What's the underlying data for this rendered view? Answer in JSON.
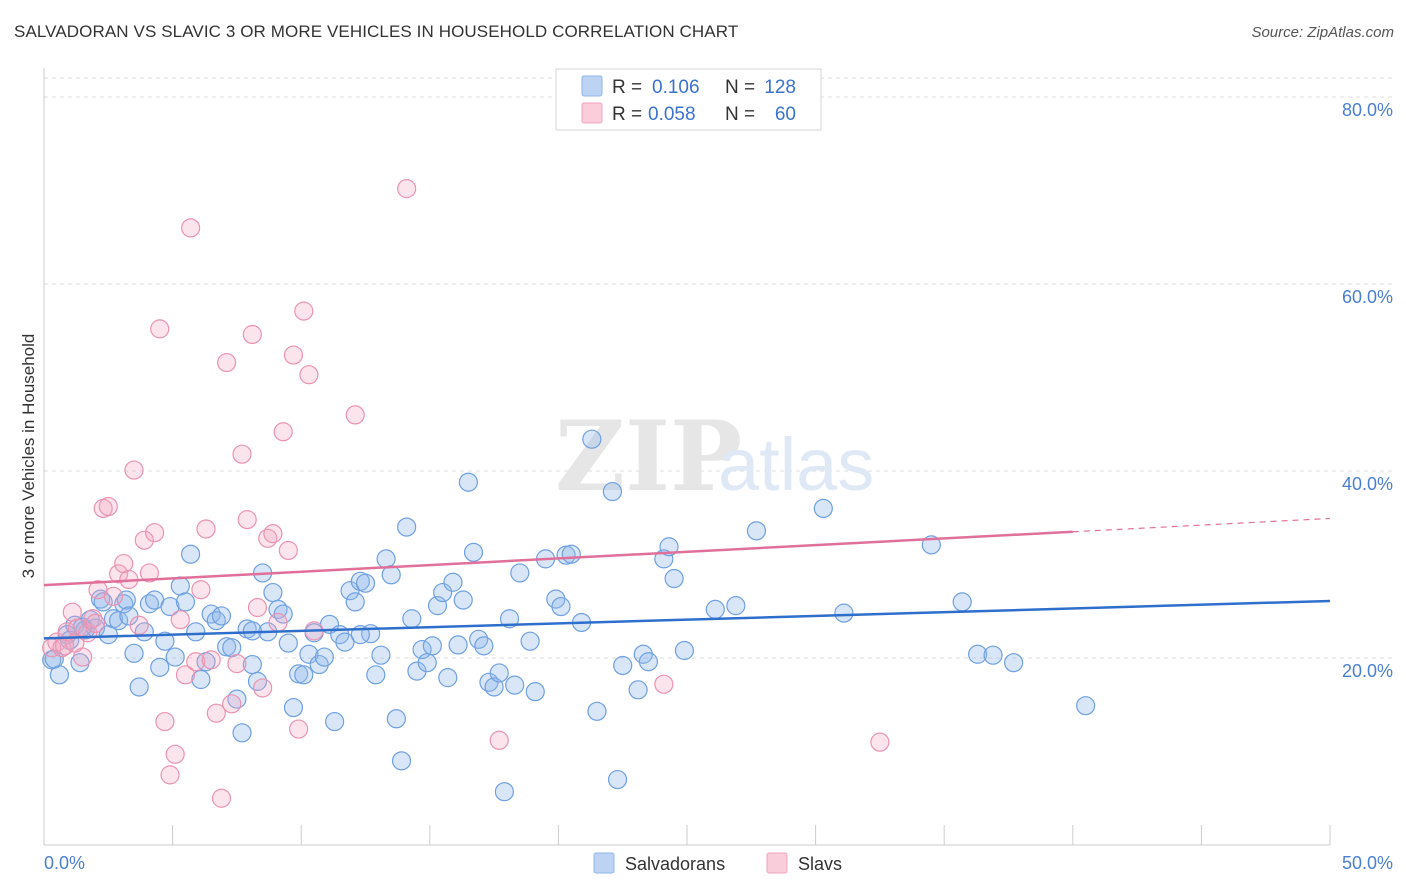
{
  "header": {
    "title": "SALVADORAN VS SLAVIC 3 OR MORE VEHICLES IN HOUSEHOLD CORRELATION CHART",
    "source": "Source: ZipAtlas.com"
  },
  "watermark": {
    "zip": "ZIP",
    "atlas": "atlas"
  },
  "legend_top": [
    {
      "r_label": "R =",
      "r_value": "0.106",
      "n_label": "N =",
      "n_value": "128",
      "color": "#8fb6ea"
    },
    {
      "r_label": "R =",
      "r_value": "0.058",
      "n_label": "N =",
      "n_value": "60",
      "color": "#f2a5bf"
    }
  ],
  "chart_data": {
    "type": "scatter",
    "ylabel": "3 or more Vehicles in Household",
    "xlim": [
      0,
      50
    ],
    "ylim": [
      0,
      80
    ],
    "x_tick_labels": [
      "0.0%",
      "50.0%"
    ],
    "y_ticks": [
      20,
      40,
      60,
      80
    ],
    "y_tick_labels": [
      "20.0%",
      "40.0%",
      "60.0%",
      "80.0%"
    ],
    "grid": true,
    "legend_position": "bottom-center",
    "colors": {
      "Salvadorans": "#8fb6ea",
      "Slavs": "#f2a5bf",
      "Salvadorans_line": "#2f6fcc",
      "Slavs_line": "#e0709a",
      "tick_label": "#4a7fd0"
    },
    "series": [
      {
        "name": "Salvadorans",
        "trend": {
          "x": [
            0,
            50
          ],
          "y": [
            22.1,
            26.1
          ]
        },
        "points": [
          [
            0.3,
            19.8
          ],
          [
            0.6,
            18.2
          ],
          [
            0.9,
            22.5
          ],
          [
            1.2,
            23.5
          ],
          [
            1.4,
            19.5
          ],
          [
            1.6,
            23.0
          ],
          [
            1.8,
            24.1
          ],
          [
            2.0,
            23.2
          ],
          [
            2.2,
            26.3
          ],
          [
            2.5,
            22.5
          ],
          [
            2.7,
            24.2
          ],
          [
            2.9,
            24.0
          ],
          [
            3.1,
            25.8
          ],
          [
            3.2,
            26.2
          ],
          [
            3.5,
            20.5
          ],
          [
            3.7,
            16.9
          ],
          [
            3.9,
            22.8
          ],
          [
            4.1,
            25.8
          ],
          [
            4.3,
            26.2
          ],
          [
            4.5,
            19.0
          ],
          [
            4.7,
            21.8
          ],
          [
            4.9,
            25.5
          ],
          [
            5.1,
            20.1
          ],
          [
            5.3,
            27.7
          ],
          [
            5.5,
            26.0
          ],
          [
            5.7,
            31.1
          ],
          [
            5.9,
            22.8
          ],
          [
            6.1,
            17.7
          ],
          [
            6.3,
            19.6
          ],
          [
            6.5,
            24.7
          ],
          [
            6.7,
            24.0
          ],
          [
            6.9,
            24.5
          ],
          [
            7.1,
            21.2
          ],
          [
            7.3,
            21.1
          ],
          [
            7.5,
            15.6
          ],
          [
            7.7,
            12.0
          ],
          [
            7.9,
            23.1
          ],
          [
            8.1,
            19.3
          ],
          [
            8.3,
            17.5
          ],
          [
            8.5,
            29.1
          ],
          [
            8.7,
            22.8
          ],
          [
            8.9,
            27.0
          ],
          [
            9.1,
            25.2
          ],
          [
            9.3,
            24.7
          ],
          [
            9.5,
            21.6
          ],
          [
            9.7,
            14.7
          ],
          [
            9.9,
            18.3
          ],
          [
            10.1,
            18.2
          ],
          [
            10.3,
            20.4
          ],
          [
            10.5,
            22.7
          ],
          [
            10.7,
            19.3
          ],
          [
            10.9,
            20.1
          ],
          [
            11.1,
            23.6
          ],
          [
            11.3,
            13.2
          ],
          [
            11.5,
            22.5
          ],
          [
            11.7,
            21.7
          ],
          [
            11.9,
            27.2
          ],
          [
            12.1,
            26.0
          ],
          [
            12.3,
            28.2
          ],
          [
            12.5,
            28.0
          ],
          [
            12.7,
            22.6
          ],
          [
            12.9,
            18.2
          ],
          [
            13.1,
            20.3
          ],
          [
            13.3,
            30.6
          ],
          [
            13.5,
            28.9
          ],
          [
            13.7,
            13.5
          ],
          [
            13.9,
            9.0
          ],
          [
            14.1,
            34.0
          ],
          [
            14.3,
            24.2
          ],
          [
            14.5,
            18.6
          ],
          [
            14.7,
            20.9
          ],
          [
            14.9,
            19.5
          ],
          [
            15.1,
            21.3
          ],
          [
            15.3,
            25.6
          ],
          [
            15.5,
            27.0
          ],
          [
            15.7,
            17.9
          ],
          [
            15.9,
            28.1
          ],
          [
            16.1,
            21.4
          ],
          [
            16.3,
            26.2
          ],
          [
            16.5,
            38.8
          ],
          [
            16.7,
            31.3
          ],
          [
            16.9,
            22.0
          ],
          [
            17.1,
            21.3
          ],
          [
            17.3,
            17.4
          ],
          [
            17.5,
            16.9
          ],
          [
            17.7,
            18.4
          ],
          [
            17.9,
            5.7
          ],
          [
            18.1,
            24.2
          ],
          [
            18.3,
            17.1
          ],
          [
            18.5,
            29.1
          ],
          [
            18.9,
            21.8
          ],
          [
            19.1,
            16.4
          ],
          [
            19.5,
            30.6
          ],
          [
            19.9,
            26.3
          ],
          [
            20.1,
            25.5
          ],
          [
            20.3,
            31.0
          ],
          [
            20.5,
            31.1
          ],
          [
            20.9,
            23.8
          ],
          [
            21.3,
            43.4
          ],
          [
            21.5,
            14.3
          ],
          [
            22.1,
            37.8
          ],
          [
            22.3,
            7.0
          ],
          [
            22.5,
            19.2
          ],
          [
            23.1,
            16.6
          ],
          [
            23.3,
            20.4
          ],
          [
            23.5,
            19.6
          ],
          [
            24.1,
            30.6
          ],
          [
            24.3,
            31.9
          ],
          [
            24.5,
            28.5
          ],
          [
            24.9,
            20.8
          ],
          [
            26.1,
            25.2
          ],
          [
            26.9,
            25.6
          ],
          [
            27.7,
            33.6
          ],
          [
            30.3,
            36.0
          ],
          [
            31.1,
            24.8
          ],
          [
            34.5,
            32.1
          ],
          [
            35.7,
            26.0
          ],
          [
            36.3,
            20.4
          ],
          [
            36.9,
            20.3
          ],
          [
            37.7,
            19.5
          ],
          [
            40.5,
            14.9
          ],
          [
            0.4,
            19.9
          ],
          [
            1.0,
            21.9
          ],
          [
            1.5,
            23.3
          ],
          [
            2.3,
            26.0
          ],
          [
            3.3,
            24.5
          ],
          [
            12.3,
            22.5
          ],
          [
            8.1,
            22.9
          ]
        ]
      },
      {
        "name": "Slavs",
        "trend": {
          "x": [
            0,
            40
          ],
          "y": [
            27.8,
            33.5
          ]
        },
        "points": [
          [
            0.3,
            21.1
          ],
          [
            0.5,
            21.7
          ],
          [
            0.7,
            21.1
          ],
          [
            0.9,
            22.8
          ],
          [
            1.1,
            24.9
          ],
          [
            1.3,
            23.2
          ],
          [
            1.5,
            20.1
          ],
          [
            1.7,
            22.7
          ],
          [
            1.9,
            24.2
          ],
          [
            2.1,
            27.3
          ],
          [
            2.3,
            36.0
          ],
          [
            2.5,
            36.2
          ],
          [
            2.7,
            26.6
          ],
          [
            2.9,
            29.0
          ],
          [
            3.1,
            30.1
          ],
          [
            3.3,
            28.4
          ],
          [
            3.5,
            40.1
          ],
          [
            3.7,
            23.5
          ],
          [
            3.9,
            32.6
          ],
          [
            4.1,
            29.1
          ],
          [
            4.3,
            33.4
          ],
          [
            4.5,
            55.2
          ],
          [
            4.7,
            13.2
          ],
          [
            4.9,
            7.5
          ],
          [
            5.1,
            9.7
          ],
          [
            5.3,
            24.1
          ],
          [
            5.5,
            18.2
          ],
          [
            5.7,
            66.0
          ],
          [
            5.9,
            19.6
          ],
          [
            6.1,
            27.3
          ],
          [
            6.3,
            33.8
          ],
          [
            6.5,
            19.8
          ],
          [
            6.7,
            14.1
          ],
          [
            6.9,
            5.0
          ],
          [
            7.1,
            51.6
          ],
          [
            7.3,
            15.1
          ],
          [
            7.5,
            19.4
          ],
          [
            7.7,
            41.8
          ],
          [
            7.9,
            34.8
          ],
          [
            8.1,
            54.6
          ],
          [
            8.3,
            25.4
          ],
          [
            8.5,
            16.8
          ],
          [
            8.7,
            32.8
          ],
          [
            8.9,
            33.3
          ],
          [
            9.1,
            23.8
          ],
          [
            9.3,
            44.2
          ],
          [
            9.5,
            31.5
          ],
          [
            9.7,
            52.4
          ],
          [
            9.9,
            12.4
          ],
          [
            10.1,
            57.1
          ],
          [
            10.3,
            50.3
          ],
          [
            10.5,
            22.9
          ],
          [
            12.1,
            46.0
          ],
          [
            14.1,
            70.2
          ],
          [
            17.7,
            11.2
          ],
          [
            24.1,
            17.2
          ],
          [
            32.5,
            11.0
          ],
          [
            1.2,
            21.6
          ],
          [
            2.0,
            23.7
          ],
          [
            0.8,
            21.3
          ]
        ]
      }
    ]
  },
  "legend_bottom": [
    {
      "label": "Salvadorans",
      "color": "#8fb6ea"
    },
    {
      "label": "Slavs",
      "color": "#f2a5bf"
    }
  ]
}
